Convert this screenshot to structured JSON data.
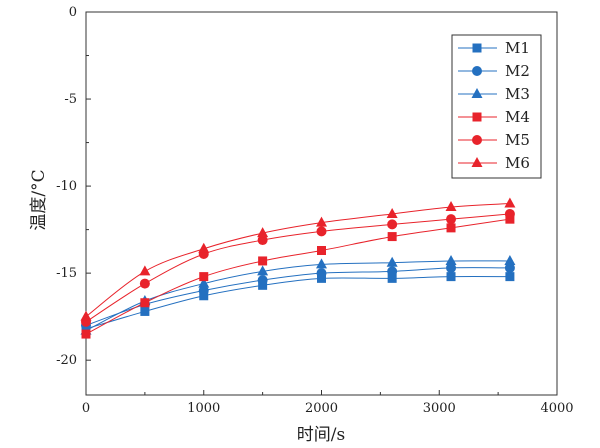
{
  "chart_data": {
    "type": "line",
    "title": "",
    "xlabel": "时间/s",
    "ylabel": "温度/°C",
    "xlim": [
      0,
      4000
    ],
    "ylim": [
      -22,
      0
    ],
    "x_ticks": [
      0,
      1000,
      2000,
      3000,
      4000
    ],
    "y_ticks": [
      0,
      -5,
      -10,
      -15,
      -20
    ],
    "x_tick_labels": [
      "0",
      "1000",
      "2000",
      "3000",
      "4000"
    ],
    "y_tick_labels": [
      "0",
      "-5",
      "-10",
      "-15",
      "-20"
    ],
    "grid": false,
    "legend_position": "top-right",
    "x": [
      0,
      500,
      1000,
      1500,
      2000,
      2600,
      3100,
      3600
    ],
    "series": [
      {
        "name": "M1",
        "marker": "square",
        "color": "#2470c0",
        "values": [
          -18.2,
          -17.2,
          -16.3,
          -15.7,
          -15.3,
          -15.3,
          -15.2,
          -15.2
        ]
      },
      {
        "name": "M2",
        "marker": "circle",
        "color": "#2470c0",
        "values": [
          -18.0,
          -16.8,
          -16.0,
          -15.4,
          -15.0,
          -14.9,
          -14.7,
          -14.7
        ]
      },
      {
        "name": "M3",
        "marker": "triangle",
        "color": "#2470c0",
        "values": [
          -18.3,
          -16.6,
          -15.6,
          -14.9,
          -14.5,
          -14.4,
          -14.3,
          -14.3
        ]
      },
      {
        "name": "M4",
        "marker": "square",
        "color": "#e8232b",
        "values": [
          -18.5,
          -16.7,
          -15.2,
          -14.3,
          -13.7,
          -12.9,
          -12.4,
          -11.9
        ]
      },
      {
        "name": "M5",
        "marker": "circle",
        "color": "#e8232b",
        "values": [
          -17.8,
          -15.6,
          -13.9,
          -13.1,
          -12.6,
          -12.2,
          -11.9,
          -11.6
        ]
      },
      {
        "name": "M6",
        "marker": "triangle",
        "color": "#e8232b",
        "values": [
          -17.5,
          -14.9,
          -13.6,
          -12.7,
          -12.1,
          -11.6,
          -11.2,
          -11.0
        ]
      }
    ]
  }
}
